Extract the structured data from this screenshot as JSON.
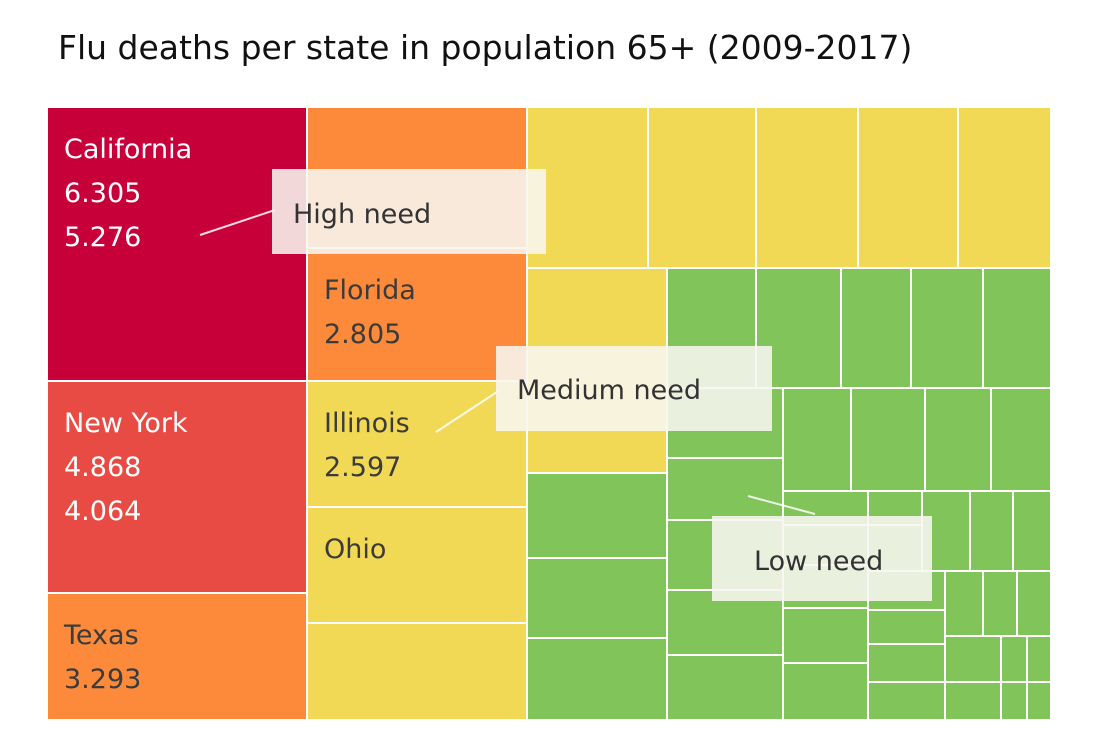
{
  "title": "Flu deaths per state in population 65+ (2009-2017)",
  "colors": {
    "high": "#c8003a",
    "high2": "#e84b43",
    "orange": "#fc8a3a",
    "yellow": "#f1d955",
    "green": "#80c45a"
  },
  "chart_data": {
    "type": "treemap",
    "title": "Flu deaths per state in population 65+ (2009-2017)",
    "labeled_cells": [
      {
        "label": "California",
        "values": [
          "6.305",
          "5.276"
        ],
        "category": "high"
      },
      {
        "label": "New York",
        "values": [
          "4.868",
          "4.064"
        ],
        "category": "high2"
      },
      {
        "label": "Texas",
        "values": [
          "3.293"
        ],
        "category": "orange"
      },
      {
        "label": "Florida",
        "values": [
          "2.805"
        ],
        "category": "orange"
      },
      {
        "label": "Illinois",
        "values": [
          "2.597"
        ],
        "category": "yellow"
      },
      {
        "label": "Ohio",
        "values": [],
        "category": "yellow"
      }
    ],
    "annotations": [
      {
        "id": "high",
        "text": "High need"
      },
      {
        "id": "medium",
        "text": "Medium need"
      },
      {
        "id": "low",
        "text": "Low need"
      }
    ]
  }
}
